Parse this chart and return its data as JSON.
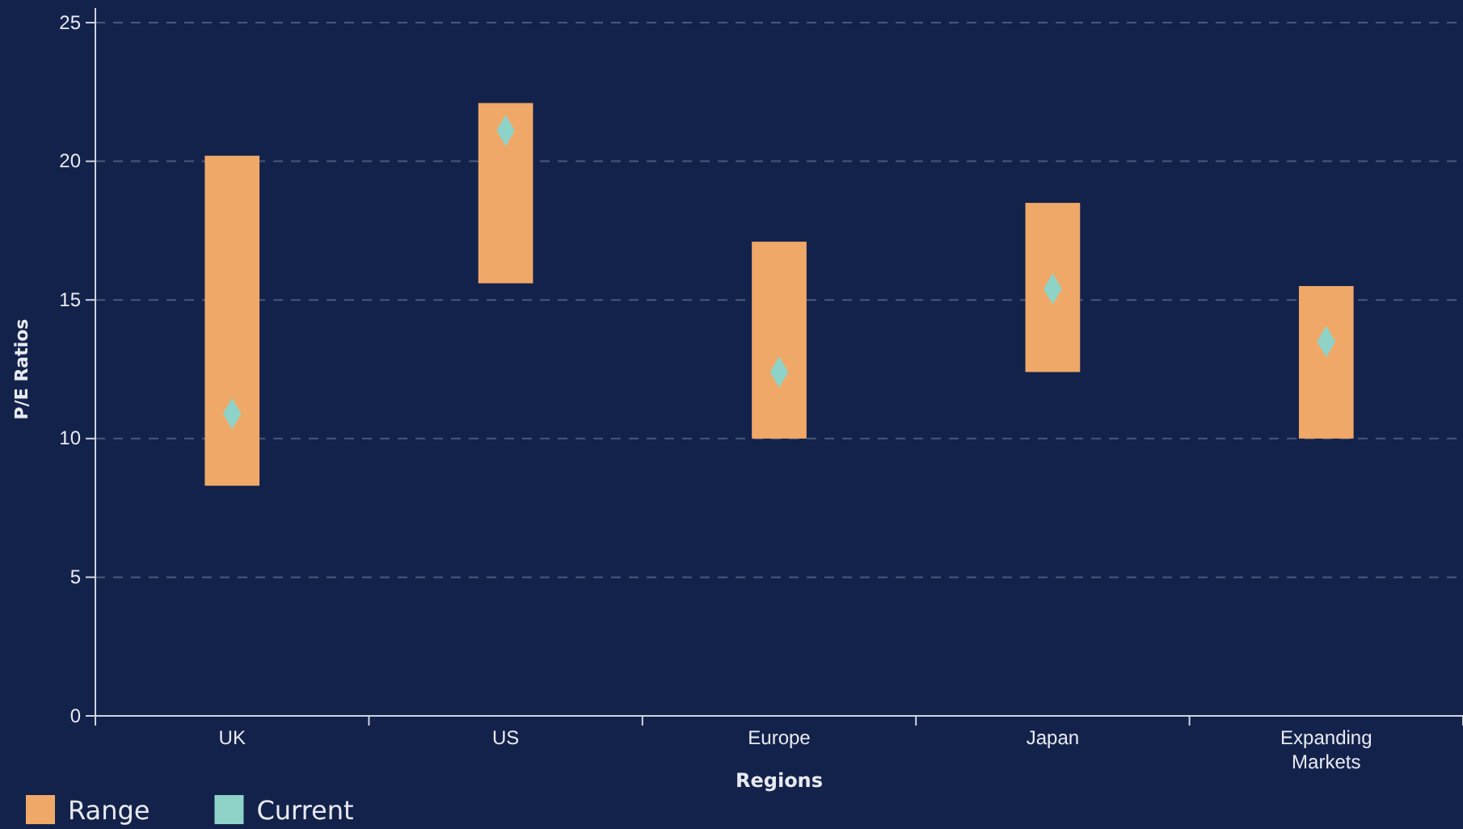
{
  "chart_data": {
    "type": "bar",
    "xlabel": "Regions",
    "ylabel": "P/E Ratios",
    "categories": [
      "UK",
      "US",
      "Europe",
      "Japan",
      "Expanding Markets"
    ],
    "ylim": [
      0,
      25
    ],
    "yticks": [
      0,
      5,
      10,
      15,
      20,
      25
    ],
    "grid": "y",
    "legend": "bottom left",
    "series": [
      {
        "name": "Range",
        "color": "#f0a868",
        "base": [
          8.3,
          15.6,
          10.0,
          12.4,
          10.0
        ],
        "values": [
          11.9,
          6.5,
          7.1,
          6.1,
          5.5
        ]
      },
      {
        "name": "Current",
        "type": "scatter",
        "color": "#8fd3c8",
        "marker": "diamond",
        "x": [
          "UK",
          "US",
          "Europe",
          "Japan",
          "Expanding Markets"
        ],
        "values": [
          10.9,
          21.1,
          12.4,
          15.4,
          13.5
        ]
      }
    ]
  }
}
